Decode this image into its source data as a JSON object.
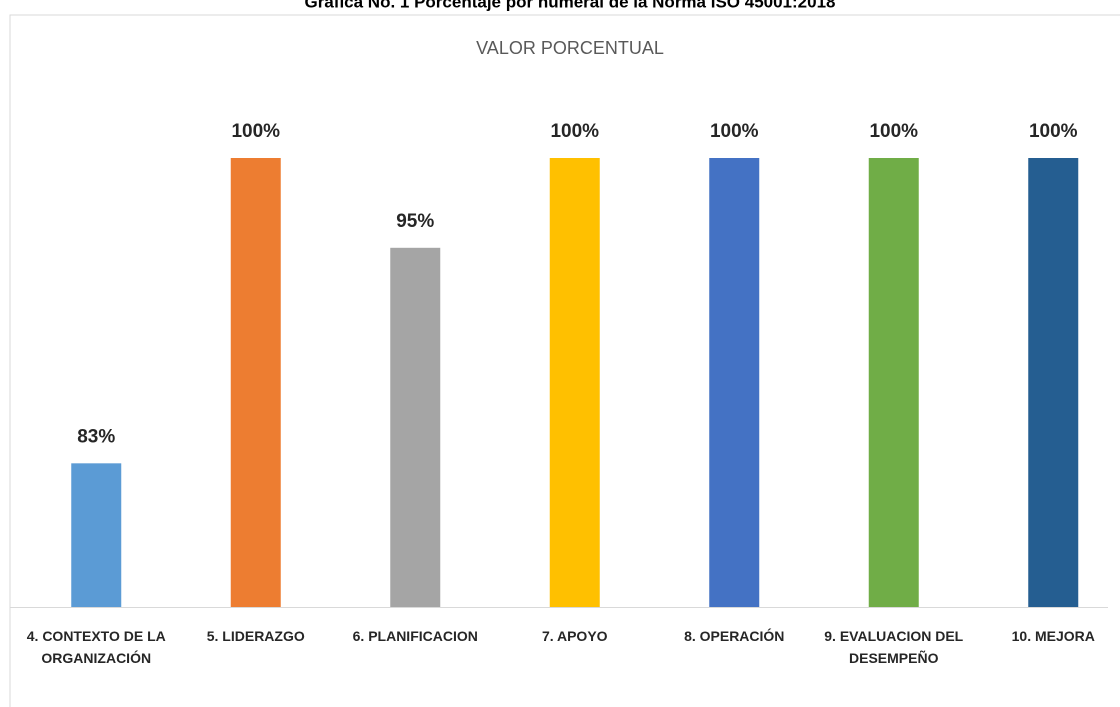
{
  "chart_data": {
    "type": "bar",
    "title": "Gráfica No. 1 Porcentaje por numeral de la Norma ISO 45001:2018",
    "subtitle": "VALOR PORCENTUAL",
    "categories": [
      "4. CONTEXTO DE LA ORGANIZACIÓN",
      "5. LIDERAZGO",
      "6. PLANIFICACION",
      "7. APOYO",
      "8. OPERACIÓN",
      "9. EVALUACION DEL DESEMPEÑO",
      "10. MEJORA"
    ],
    "values": [
      83,
      100,
      95,
      100,
      100,
      100,
      100
    ],
    "value_labels": [
      "83%",
      "100%",
      "95%",
      "100%",
      "100%",
      "100%",
      "100%"
    ],
    "colors": [
      "#5b9bd5",
      "#ed7d31",
      "#a5a5a5",
      "#ffc000",
      "#4472c4",
      "#70ad47",
      "#255e91"
    ],
    "ylim": [
      75,
      100
    ]
  }
}
